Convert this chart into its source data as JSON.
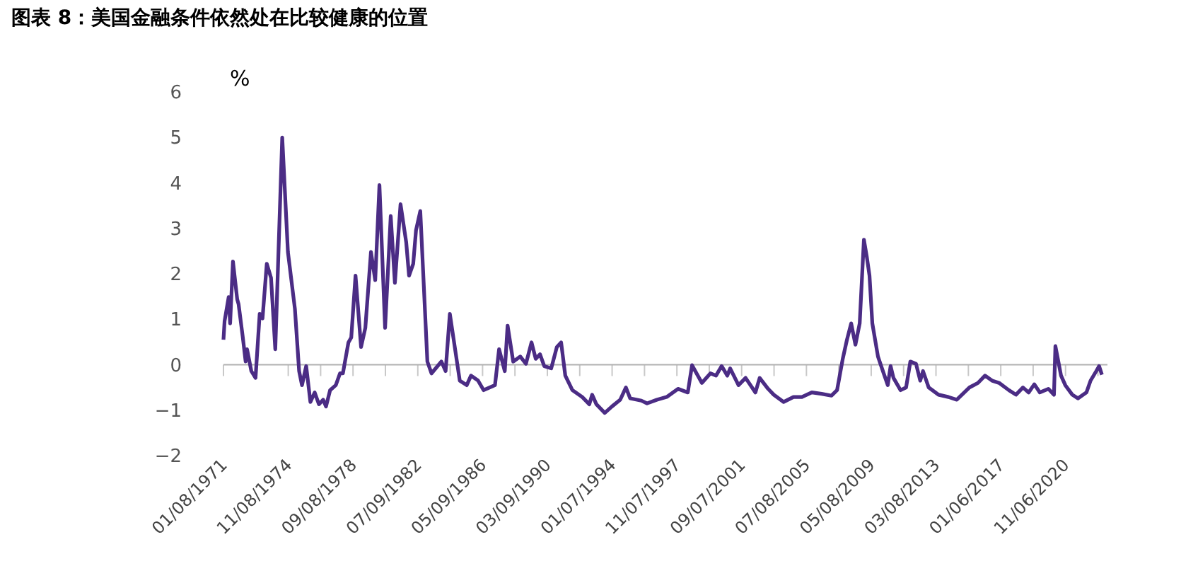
{
  "chart_data": {
    "type": "line",
    "title": "图表 8：美国金融条件依然处在比较健康的位置",
    "ylabel": "%",
    "x": [
      "1971-01-08",
      "1971-02",
      "1971-05",
      "1971-06",
      "1971-08",
      "1971-11",
      "1971-12",
      "1972-03",
      "1972-05",
      "1972-06",
      "1972-09",
      "1972-12",
      "1973-03",
      "1973-05",
      "1973-08",
      "1973-11",
      "1974-02",
      "1974-07",
      "1974-11",
      "1975-04",
      "1975-07",
      "1975-09",
      "1975-12",
      "1976-03",
      "1976-06",
      "1976-09",
      "1976-12",
      "1977-02",
      "1977-05",
      "1977-09",
      "1977-12",
      "1978-02",
      "1978-06",
      "1978-08",
      "1978-11",
      "1979-03",
      "1979-06",
      "1979-10",
      "1980-01",
      "1980-04",
      "1980-08",
      "1980-12",
      "1981-03",
      "1981-07",
      "1981-11",
      "1982-01",
      "1982-04",
      "1982-06",
      "1982-09",
      "1982-11",
      "1983-02",
      "1983-05",
      "1983-12",
      "1984-03",
      "1984-06",
      "1985-01",
      "1985-06",
      "1985-09",
      "1986-02",
      "1986-06",
      "1987-02",
      "1987-05",
      "1987-09",
      "1987-11",
      "1988-03",
      "1988-08",
      "1988-12",
      "1989-04",
      "1989-07",
      "1989-10",
      "1990-01",
      "1990-06",
      "1990-10",
      "1991-01",
      "1991-04",
      "1991-09",
      "1992-04",
      "1992-09",
      "1992-11",
      "1993-02",
      "1993-08",
      "1994-01",
      "1994-07",
      "1994-11",
      "1995-02",
      "1995-10",
      "1996-02",
      "1996-09",
      "1997-04",
      "1997-12",
      "1998-07",
      "1998-10",
      "1999-05",
      "1999-11",
      "2000-03",
      "2000-07",
      "2000-11",
      "2001-01",
      "2001-07",
      "2001-12",
      "2002-07",
      "2002-10",
      "2003-04",
      "2003-08",
      "2004-03",
      "2004-10",
      "2005-04",
      "2005-11",
      "2006-06",
      "2007-01",
      "2007-05",
      "2007-09",
      "2007-12",
      "2008-03",
      "2008-06",
      "2008-09",
      "2008-12",
      "2009-02",
      "2009-04",
      "2009-06",
      "2009-10",
      "2010-02",
      "2010-05",
      "2010-07",
      "2010-09",
      "2011-02",
      "2011-06",
      "2011-09",
      "2012-01",
      "2012-04",
      "2012-06",
      "2012-10",
      "2013-05",
      "2013-12",
      "2014-06",
      "2015-03",
      "2015-09",
      "2016-02",
      "2016-07",
      "2016-12",
      "2017-07",
      "2017-12",
      "2018-05",
      "2018-09",
      "2019-01",
      "2019-05",
      "2019-11",
      "2020-03",
      "2020-04",
      "2020-08",
      "2020-11",
      "2021-04",
      "2021-08",
      "2022-02",
      "2022-05",
      "2022-09",
      "2022-11",
      "2023-01"
    ],
    "series": [
      {
        "color": "#4b2c85",
        "values": [
          0.55,
          0.96,
          1.49,
          0.91,
          2.27,
          1.44,
          1.33,
          0.6,
          0.07,
          0.34,
          -0.14,
          -0.29,
          1.12,
          1.02,
          2.22,
          1.91,
          0.34,
          5.0,
          2.48,
          1.23,
          -0.14,
          -0.45,
          -0.03,
          -0.82,
          -0.61,
          -0.87,
          -0.77,
          -0.92,
          -0.56,
          -0.45,
          -0.19,
          -0.19,
          0.49,
          0.6,
          1.96,
          0.39,
          0.81,
          2.48,
          1.86,
          3.95,
          0.81,
          3.27,
          1.8,
          3.53,
          2.69,
          1.96,
          2.22,
          2.96,
          3.38,
          2.06,
          0.07,
          -0.19,
          0.07,
          -0.14,
          1.12,
          -0.35,
          -0.45,
          -0.24,
          -0.35,
          -0.56,
          -0.45,
          0.34,
          -0.14,
          0.86,
          0.07,
          0.18,
          0.02,
          0.49,
          0.13,
          0.23,
          -0.03,
          -0.08,
          0.39,
          0.49,
          -0.24,
          -0.56,
          -0.71,
          -0.87,
          -0.66,
          -0.87,
          -1.06,
          -0.92,
          -0.77,
          -0.5,
          -0.74,
          -0.79,
          -0.85,
          -0.77,
          -0.71,
          -0.53,
          -0.61,
          -0.01,
          -0.4,
          -0.19,
          -0.24,
          -0.03,
          -0.24,
          -0.08,
          -0.45,
          -0.29,
          -0.61,
          -0.29,
          -0.53,
          -0.66,
          -0.82,
          -0.71,
          -0.71,
          -0.61,
          -0.64,
          -0.68,
          -0.56,
          0.13,
          0.55,
          0.91,
          0.44,
          0.91,
          2.75,
          2.38,
          1.96,
          0.91,
          0.18,
          -0.19,
          -0.45,
          -0.03,
          -0.29,
          -0.56,
          -0.5,
          0.07,
          0.02,
          -0.35,
          -0.14,
          -0.5,
          -0.66,
          -0.71,
          -0.77,
          -0.5,
          -0.4,
          -0.24,
          -0.35,
          -0.4,
          -0.56,
          -0.66,
          -0.5,
          -0.61,
          -0.43,
          -0.61,
          -0.53,
          -0.66,
          0.41,
          -0.24,
          -0.45,
          -0.66,
          -0.74,
          -0.61,
          -0.35,
          -0.14,
          -0.03,
          -0.22
        ]
      }
    ],
    "xlim": [
      "1971-01-08",
      "2023-05-01"
    ],
    "xticks": [
      {
        "value": "1971-01-08",
        "label": "01/08/1971"
      },
      {
        "value": "1972-12-08",
        "label": null
      },
      {
        "value": "1974-11-08",
        "label": "11/08/1974"
      },
      {
        "value": "1976-10-08",
        "label": null
      },
      {
        "value": "1978-09-08",
        "label": "09/08/1978"
      },
      {
        "value": "1980-08-08",
        "label": null
      },
      {
        "value": "1982-07-09",
        "label": "07/09/1982"
      },
      {
        "value": "1984-06-08",
        "label": null
      },
      {
        "value": "1986-05-09",
        "label": "05/09/1986"
      },
      {
        "value": "1988-04-08",
        "label": null
      },
      {
        "value": "1990-03-09",
        "label": "03/09/1990"
      },
      {
        "value": "1992-02-07",
        "label": null
      },
      {
        "value": "1994-01-07",
        "label": "01/07/1994"
      },
      {
        "value": "1995-12-08",
        "label": null
      },
      {
        "value": "1997-11-07",
        "label": "11/07/1997"
      },
      {
        "value": "1999-10-08",
        "label": null
      },
      {
        "value": "2001-09-07",
        "label": "09/07/2001"
      },
      {
        "value": "2003-08-08",
        "label": null
      },
      {
        "value": "2005-07-08",
        "label": "07/08/2005"
      },
      {
        "value": "2007-06-08",
        "label": null
      },
      {
        "value": "2009-05-08",
        "label": "05/08/2009"
      },
      {
        "value": "2011-04-08",
        "label": null
      },
      {
        "value": "2013-03-08",
        "label": "03/08/2013"
      },
      {
        "value": "2015-02-06",
        "label": null
      },
      {
        "value": "2017-01-06",
        "label": "01/06/2017"
      },
      {
        "value": "2018-12-07",
        "label": null
      },
      {
        "value": "2020-11-06",
        "label": "11/06/2020"
      },
      {
        "value": "2022-10-07",
        "label": null
      }
    ],
    "ref_lines": [
      {
        "axis": "y",
        "value": 0,
        "color": "#b0b0b0"
      }
    ],
    "ylim": [
      -2,
      6
    ],
    "yticks": [
      -2,
      -1,
      0,
      1,
      2,
      3,
      4,
      5,
      6
    ],
    "grid": false,
    "legend": false,
    "line_style": "solid",
    "marker": "none"
  }
}
